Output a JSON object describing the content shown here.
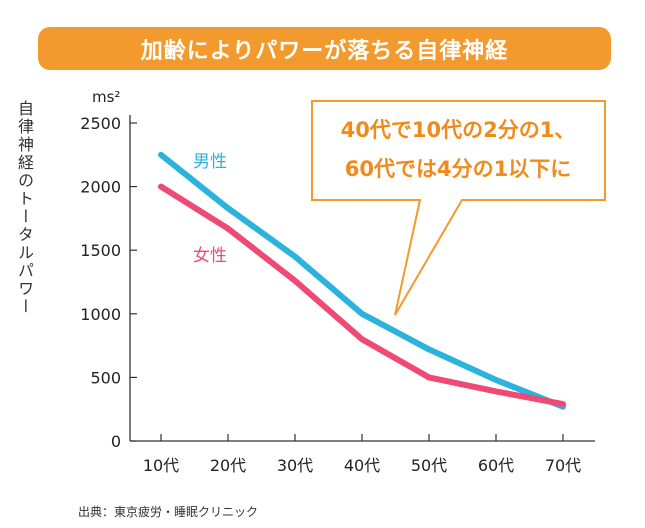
{
  "title": "加齢によりパワーが落ちる自律神経",
  "source": "出典：東京疲労・睡眠クリニック",
  "callout": {
    "line1": "40代で10代の2分の1、",
    "line2": "60代では4分の1以下に"
  },
  "colors": {
    "title_bg": "#F29A2E",
    "male": "#2BB3DE",
    "female": "#EE4A74",
    "callout_border": "#F29A2E",
    "callout_text": "#F08A1A"
  },
  "chart_data": {
    "type": "line",
    "ylabel": "自律神経のトータルパワー",
    "yunit": "ms²",
    "ylim": [
      0,
      2500
    ],
    "yticks": [
      "0",
      "500",
      "1000",
      "1500",
      "2000",
      "2500"
    ],
    "categories": [
      "10代",
      "20代",
      "30代",
      "40代",
      "50代",
      "60代",
      "70代"
    ],
    "series": [
      {
        "name": "男性",
        "values": [
          2250,
          1830,
          1450,
          1000,
          720,
          480,
          270
        ]
      },
      {
        "name": "女性",
        "values": [
          2000,
          1670,
          1260,
          800,
          500,
          390,
          290
        ]
      }
    ],
    "grid": false
  }
}
